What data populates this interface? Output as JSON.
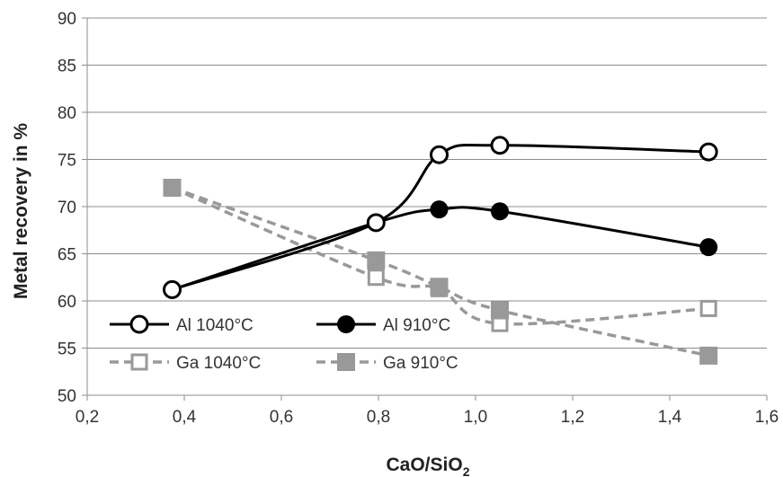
{
  "chart_data": {
    "type": "line",
    "xlabel": "CaO/SiO",
    "xlabel_sub": "2",
    "ylabel": "Metal recovery in %",
    "xlim": [
      0.2,
      1.6
    ],
    "ylim": [
      50,
      90
    ],
    "x_ticks": [
      "0,2",
      "0,4",
      "0,6",
      "0,8",
      "1,0",
      "1,2",
      "1,4",
      "1,6"
    ],
    "y_ticks": [
      "50",
      "55",
      "60",
      "65",
      "70",
      "75",
      "80",
      "85",
      "90"
    ],
    "grid": "horizontal",
    "legend_position": "lower-left",
    "series": [
      {
        "name": "Al 1040°C",
        "color": "#000000",
        "style": "solid",
        "marker": "circle-open",
        "x": [
          0.375,
          0.795,
          0.925,
          1.05,
          1.48
        ],
        "y": [
          61.2,
          68.3,
          75.5,
          76.5,
          75.8
        ]
      },
      {
        "name": "Al 910°C",
        "color": "#000000",
        "style": "solid",
        "marker": "circle-filled",
        "x": [
          0.375,
          0.795,
          0.925,
          1.05,
          1.48
        ],
        "y": [
          61.2,
          68.3,
          69.7,
          69.5,
          65.7
        ]
      },
      {
        "name": "Ga 1040°C",
        "color": "#999999",
        "style": "dashed",
        "marker": "square-open",
        "x": [
          0.375,
          0.795,
          0.925,
          1.05,
          1.48
        ],
        "y": [
          72.0,
          62.5,
          61.3,
          57.6,
          59.2
        ]
      },
      {
        "name": "Ga 910°C",
        "color": "#999999",
        "style": "dashed",
        "marker": "square-filled",
        "x": [
          0.375,
          0.795,
          0.925,
          1.05,
          1.48
        ],
        "y": [
          72.0,
          64.3,
          61.5,
          59.0,
          54.2
        ]
      }
    ]
  }
}
